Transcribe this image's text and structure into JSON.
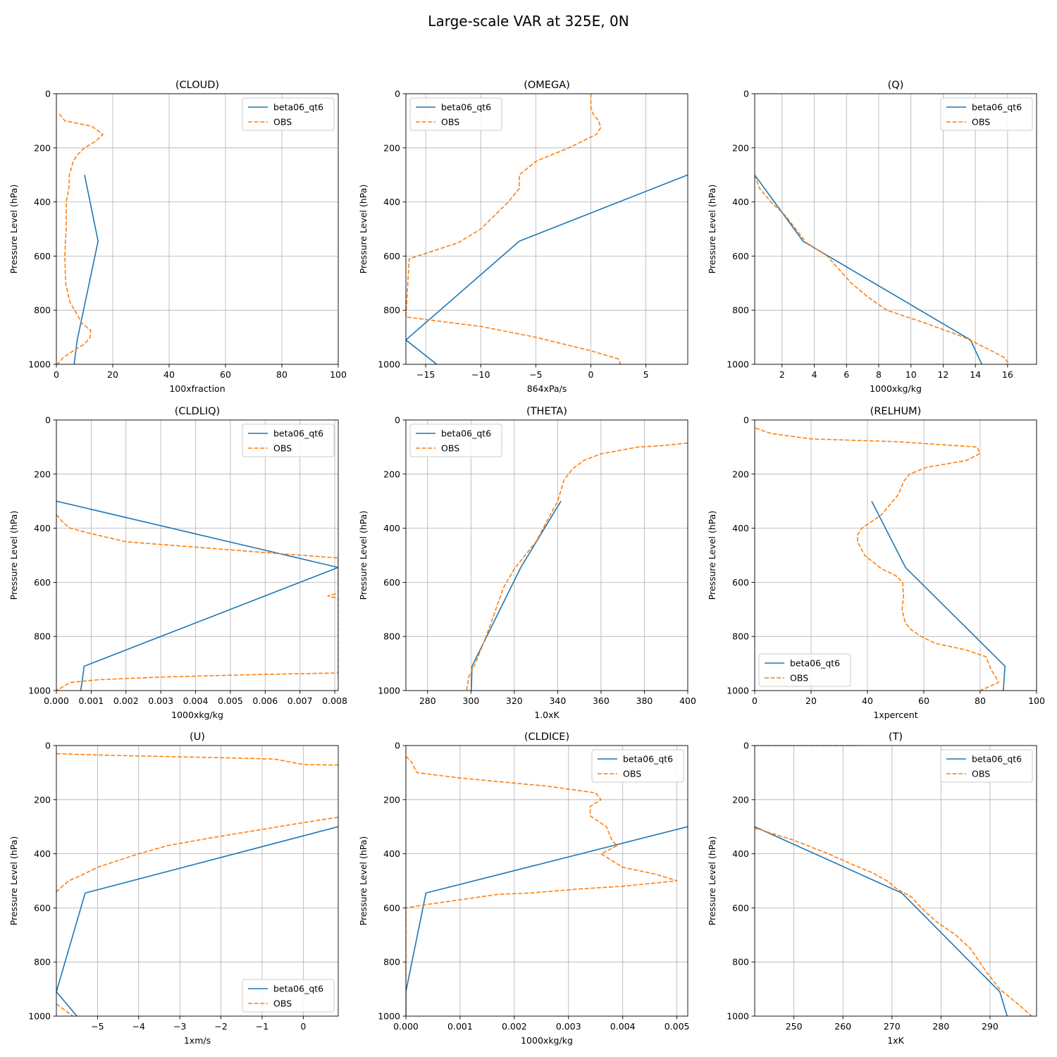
{
  "figure": {
    "title": "Large-scale VAR at 325E, 0N"
  },
  "colors": {
    "model": "#1f77b4",
    "obs": "#ff7f0e",
    "grid": "#b0b0b0"
  },
  "chart_data": [
    {
      "type": "line",
      "title": "(CLOUD)",
      "xlabel": "100xfraction",
      "ylabel": "Pressure Level (hPa)",
      "xlim": [
        0,
        100
      ],
      "ylim": [
        1000,
        0
      ],
      "xticks": [
        0,
        20,
        40,
        60,
        80,
        100
      ],
      "xtick_labels": [
        "0",
        "20",
        "40",
        "60",
        "80",
        "100"
      ],
      "yticks": [
        0,
        200,
        400,
        600,
        800,
        1000
      ],
      "legend": "upper-right",
      "series": [
        {
          "name": "beta06_qt6",
          "style": "solid",
          "x": [
            10,
            14.8,
            7.4,
            6.3
          ],
          "y": [
            300,
            545,
            910,
            1000
          ]
        },
        {
          "name": "OBS",
          "style": "dashed",
          "x": [
            1,
            3,
            12.5,
            16.5,
            14,
            10,
            7.5,
            6,
            4.6,
            4.4,
            3.5,
            3.5,
            3.5,
            3.2,
            3,
            3.3,
            4.8,
            9.2,
            12.2,
            12,
            10,
            6,
            2.5,
            0.3
          ],
          "y": [
            75,
            100,
            120,
            150,
            175,
            200,
            225,
            250,
            300,
            350,
            400,
            450,
            500,
            550,
            600,
            700,
            770,
            850,
            875,
            900,
            925,
            950,
            975,
            1000
          ]
        }
      ]
    },
    {
      "type": "line",
      "title": "(OMEGA)",
      "xlabel": "864xPa/s",
      "ylabel": "Pressure Level (hPa)",
      "xlim": [
        -16.8,
        8.8
      ],
      "ylim": [
        1000,
        0
      ],
      "xticks": [
        -15,
        -10,
        -5,
        0,
        5
      ],
      "xtick_labels": [
        "−15",
        "−10",
        "−5",
        "0",
        "5"
      ],
      "yticks": [
        0,
        200,
        400,
        600,
        800,
        1000
      ],
      "legend": "upper-left",
      "series": [
        {
          "name": "beta06_qt6",
          "style": "solid",
          "x": [
            8.8,
            -6.5,
            -16.8,
            -14
          ],
          "y": [
            300,
            545,
            910,
            1000
          ]
        },
        {
          "name": "OBS",
          "style": "dashed",
          "x": [
            0,
            0,
            0.2,
            0.7,
            0.9,
            0.5,
            -2,
            -5,
            -6.5,
            -6.5,
            -7.5,
            -10,
            -12,
            -16.5,
            -16.8,
            -10,
            -5,
            0,
            2.5,
            2.7
          ],
          "y": [
            0,
            50,
            75,
            100,
            125,
            150,
            200,
            250,
            300,
            350,
            400,
            500,
            550,
            610,
            825,
            860,
            900,
            950,
            980,
            1000
          ]
        }
      ]
    },
    {
      "type": "line",
      "title": "(Q)",
      "xlabel": "1000xkg/kg",
      "ylabel": "Pressure Level (hPa)",
      "xlim": [
        0.3,
        17.8
      ],
      "ylim": [
        1000,
        0
      ],
      "xticks": [
        2,
        4,
        6,
        8,
        10,
        12,
        14,
        16
      ],
      "xtick_labels": [
        "2",
        "4",
        "6",
        "8",
        "10",
        "12",
        "14",
        "16"
      ],
      "yticks": [
        0,
        200,
        400,
        600,
        800,
        1000
      ],
      "legend": "upper-right",
      "series": [
        {
          "name": "beta06_qt6",
          "style": "solid",
          "x": [
            0.3,
            3.3,
            13.7,
            14.4
          ],
          "y": [
            300,
            545,
            910,
            1000
          ]
        },
        {
          "name": "OBS",
          "style": "dashed",
          "x": [
            0.3,
            0.6,
            1.3,
            2.2,
            3.5,
            4.8,
            6.3,
            7.3,
            8.5,
            11,
            13.3,
            15,
            15.8,
            16.1
          ],
          "y": [
            300,
            350,
            400,
            450,
            550,
            600,
            700,
            750,
            800,
            850,
            900,
            950,
            975,
            1000
          ]
        }
      ]
    },
    {
      "type": "line",
      "title": "(CLDLIQ)",
      "xlabel": "1000xkg/kg",
      "ylabel": "Pressure Level (hPa)",
      "xlim": [
        0,
        0.0081
      ],
      "ylim": [
        1000,
        0
      ],
      "xticks": [
        0,
        0.001,
        0.002,
        0.003,
        0.004,
        0.005,
        0.006,
        0.007,
        0.008
      ],
      "xtick_labels": [
        "0.000",
        "0.001",
        "0.002",
        "0.003",
        "0.004",
        "0.005",
        "0.006",
        "0.007",
        "0.008"
      ],
      "yticks": [
        0,
        200,
        400,
        600,
        800,
        1000
      ],
      "legend": "upper-right",
      "series": [
        {
          "name": "beta06_qt6",
          "style": "solid",
          "x": [
            0,
            0.0081,
            0.0008,
            0.0007
          ],
          "y": [
            300,
            545,
            910,
            1000
          ]
        },
        {
          "name": "OBS",
          "style": "dashed",
          "x": [
            0,
            0.0002,
            0.0004,
            0.001,
            0.002,
            0.006,
            0.0081,
            0.0081,
            0.0078,
            0.0081,
            0.0081,
            0.006,
            0.003,
            0.0012,
            0.0004,
            0
          ],
          "y": [
            350,
            380,
            400,
            420,
            450,
            490,
            510,
            640,
            650,
            660,
            935,
            940,
            950,
            960,
            970,
            1000
          ]
        }
      ]
    },
    {
      "type": "line",
      "title": "(THETA)",
      "xlabel": "1.0xK",
      "ylabel": "Pressure Level (hPa)",
      "xlim": [
        270,
        400
      ],
      "ylim": [
        1000,
        0
      ],
      "xticks": [
        280,
        300,
        320,
        340,
        360,
        380,
        400
      ],
      "xtick_labels": [
        "280",
        "300",
        "320",
        "340",
        "360",
        "380",
        "400"
      ],
      "yticks": [
        0,
        200,
        400,
        600,
        800,
        1000
      ],
      "legend": "upper-left",
      "series": [
        {
          "name": "beta06_qt6",
          "style": "solid",
          "x": [
            341.5,
            323,
            300.5,
            300.2
          ],
          "y": [
            300,
            545,
            910,
            1000
          ]
        },
        {
          "name": "OBS",
          "style": "dashed",
          "x": [
            400,
            388,
            377,
            360,
            352,
            347,
            343,
            340,
            330,
            320,
            315,
            307,
            302,
            299,
            298
          ],
          "y": [
            85,
            95,
            100,
            125,
            150,
            180,
            220,
            300,
            450,
            550,
            620,
            800,
            900,
            950,
            1000
          ]
        }
      ]
    },
    {
      "type": "line",
      "title": "(RELHUM)",
      "xlabel": "1xpercent",
      "ylabel": "Pressure Level (hPa)",
      "xlim": [
        0,
        100
      ],
      "ylim": [
        1000,
        0
      ],
      "xticks": [
        0,
        20,
        40,
        60,
        80,
        100
      ],
      "xtick_labels": [
        "0",
        "20",
        "40",
        "60",
        "80",
        "100"
      ],
      "yticks": [
        0,
        200,
        400,
        600,
        800,
        1000
      ],
      "legend": "lower-left",
      "series": [
        {
          "name": "beta06_qt6",
          "style": "solid",
          "x": [
            41.5,
            53.5,
            88.8,
            88.2
          ],
          "y": [
            300,
            545,
            910,
            1000
          ]
        },
        {
          "name": "OBS",
          "style": "dashed",
          "x": [
            0.3,
            5.8,
            20,
            50,
            79,
            79.8,
            75,
            61,
            55,
            53,
            51,
            49,
            45,
            38,
            36.5,
            36.5,
            39,
            45,
            50,
            52.5,
            52.8,
            52.3,
            52.8,
            53.5,
            55.5,
            59,
            64,
            75,
            82,
            84,
            85.5,
            86.5,
            80
          ],
          "y": [
            30,
            50,
            70,
            80,
            100,
            125,
            150,
            175,
            200,
            225,
            275,
            300,
            350,
            400,
            425,
            450,
            500,
            550,
            575,
            600,
            650,
            700,
            725,
            750,
            775,
            800,
            825,
            850,
            875,
            925,
            950,
            970,
            1000
          ]
        }
      ]
    },
    {
      "type": "line",
      "title": "(U)",
      "xlabel": "1xm/s",
      "ylabel": "Pressure Level (hPa)",
      "xlim": [
        -6,
        0.85
      ],
      "ylim": [
        1000,
        0
      ],
      "xticks": [
        -5,
        -4,
        -3,
        -2,
        -1,
        0
      ],
      "xtick_labels": [
        "−5",
        "−4",
        "−3",
        "−2",
        "−1",
        "0"
      ],
      "yticks": [
        0,
        200,
        400,
        600,
        800,
        1000
      ],
      "legend": "lower-right",
      "series": [
        {
          "name": "beta06_qt6",
          "style": "solid",
          "x": [
            0.85,
            -5.3,
            -6,
            -5.5
          ],
          "y": [
            300,
            545,
            910,
            1000
          ]
        },
        {
          "name": "OBS",
          "style": "dashed",
          "x": [
            -6,
            -5,
            -2,
            -0.7,
            0,
            0.85
          ],
          "y": [
            30,
            35,
            45,
            50,
            70,
            72
          ]
        },
        {
          "name": "OBS",
          "style": "dashed",
          "legend": false,
          "x": [
            0.85,
            0,
            -1,
            -2.2,
            -3.3,
            -4,
            -5,
            -5.4,
            -5.7,
            -6
          ],
          "y": [
            265,
            285,
            310,
            340,
            370,
            400,
            450,
            480,
            500,
            540
          ]
        },
        {
          "name": "OBS",
          "style": "dashed",
          "legend": false,
          "x": [
            -6,
            -5.6
          ],
          "y": [
            955,
            1000
          ]
        }
      ]
    },
    {
      "type": "line",
      "title": "(CLDICE)",
      "xlabel": "1000xkg/kg",
      "ylabel": "Pressure Level (hPa)",
      "xlim": [
        0,
        0.0052
      ],
      "ylim": [
        1000,
        0
      ],
      "xticks": [
        0,
        0.001,
        0.002,
        0.003,
        0.004,
        0.005
      ],
      "xtick_labels": [
        "0.000",
        "0.001",
        "0.002",
        "0.003",
        "0.004",
        "0.005"
      ],
      "yticks": [
        0,
        200,
        400,
        600,
        800,
        1000
      ],
      "legend": "upper-right",
      "series": [
        {
          "name": "beta06_qt6",
          "style": "solid",
          "x": [
            0.0052,
            0.00037,
            0,
            0
          ],
          "y": [
            300,
            545,
            910,
            1000
          ]
        },
        {
          "name": "OBS",
          "style": "dashed",
          "x": [
            0,
            0.0001,
            0.0002,
            0.001,
            0.0026,
            0.0035,
            0.0036,
            0.0034,
            0.0034,
            0.0037,
            0.0038,
            0.0039,
            0.0036,
            0.004,
            0.0046,
            0.005,
            0.004,
            0.0032,
            0.0023,
            0.0017,
            0.001,
            0.0003,
            0,
            0
          ],
          "y": [
            40,
            60,
            100,
            120,
            150,
            175,
            200,
            225,
            260,
            300,
            350,
            370,
            400,
            450,
            475,
            500,
            520,
            530,
            545,
            550,
            570,
            590,
            600,
            1000
          ]
        }
      ]
    },
    {
      "type": "line",
      "title": "(T)",
      "xlabel": "1xK",
      "ylabel": "Pressure Level (hPa)",
      "xlim": [
        242,
        299.5
      ],
      "ylim": [
        1000,
        0
      ],
      "xticks": [
        250,
        260,
        270,
        280,
        290
      ],
      "xtick_labels": [
        "250",
        "260",
        "270",
        "280",
        "290"
      ],
      "yticks": [
        0,
        200,
        400,
        600,
        800,
        1000
      ],
      "legend": "upper-right",
      "series": [
        {
          "name": "beta06_qt6",
          "style": "solid",
          "x": [
            242,
            272,
            292,
            293.5
          ],
          "y": [
            300,
            545,
            910,
            1000
          ]
        },
        {
          "name": "OBS",
          "style": "dashed",
          "legend": false,
          "x": [
            242,
            250,
            257,
            263
          ],
          "y": [
            0,
            0,
            0,
            0
          ]
        },
        {
          "name": "OBS",
          "style": "dashed",
          "x": [
            242,
            250,
            257,
            262,
            266,
            269,
            271,
            274,
            276,
            279,
            283,
            286,
            289,
            292,
            294,
            296,
            298.5
          ],
          "y": [
            305,
            350,
            400,
            440,
            470,
            500,
            530,
            560,
            600,
            650,
            700,
            750,
            830,
            900,
            930,
            960,
            1000
          ]
        }
      ]
    }
  ]
}
